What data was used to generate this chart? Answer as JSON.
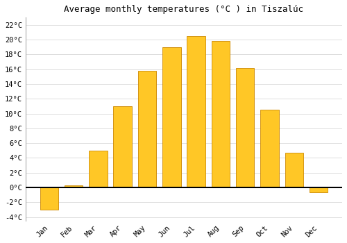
{
  "months": [
    "Jan",
    "Feb",
    "Mar",
    "Apr",
    "May",
    "Jun",
    "Jul",
    "Aug",
    "Sep",
    "Oct",
    "Nov",
    "Dec"
  ],
  "values": [
    -3.0,
    0.3,
    5.0,
    11.0,
    15.8,
    19.0,
    20.5,
    19.8,
    16.2,
    10.5,
    4.7,
    -0.7
  ],
  "bar_color": "#FFC726",
  "bar_edge_color": "#CC8800",
  "title": "Average monthly temperatures (°C ) in Tiszalúc",
  "title_fontsize": 9,
  "ylim": [
    -4.5,
    23.0
  ],
  "yticks": [
    -4,
    -2,
    0,
    2,
    4,
    6,
    8,
    10,
    12,
    14,
    16,
    18,
    20,
    22
  ],
  "background_color": "#ffffff",
  "grid_color": "#dddddd",
  "zero_line_color": "#000000",
  "bar_width": 0.75
}
